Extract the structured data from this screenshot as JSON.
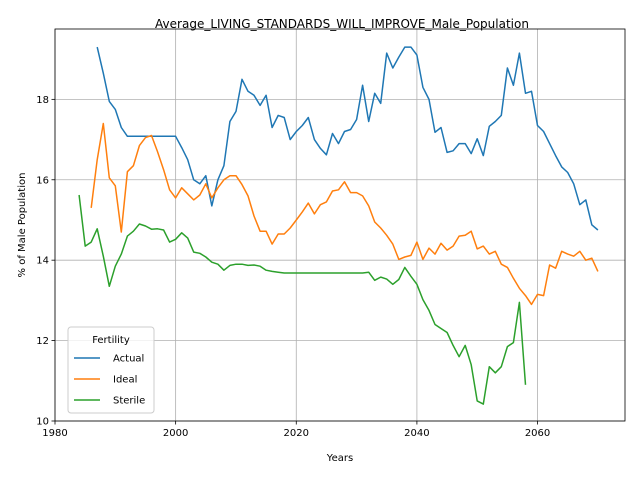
{
  "chart_data": {
    "type": "line",
    "title": "Average_LIVING_STANDARDS_WILL_IMPROVE_Male_Population",
    "xlabel": "Years",
    "ylabel": "% of Male Population",
    "xlim": [
      1980,
      2074.5
    ],
    "ylim": [
      10,
      19.75
    ],
    "xticks": [
      1980,
      2000,
      2020,
      2040,
      2060
    ],
    "yticks": [
      10,
      12,
      14,
      16,
      18
    ],
    "grid": true,
    "legend": {
      "title": "Fertility",
      "placement": "lower-left",
      "entries": [
        "Actual",
        "Ideal",
        "Sterile"
      ]
    },
    "series": [
      {
        "name": "Actual",
        "color": "#1f77b4",
        "x": [
          1987,
          1988,
          1989,
          1990,
          1991,
          1992,
          1993,
          1994,
          1995,
          1996,
          1997,
          1998,
          1999,
          2000,
          2001,
          2002,
          2003,
          2004,
          2005,
          2006,
          2007,
          2008,
          2009,
          2010,
          2011,
          2012,
          2013,
          2014,
          2015,
          2016,
          2017,
          2018,
          2019,
          2020,
          2021,
          2022,
          2023,
          2024,
          2025,
          2026,
          2027,
          2028,
          2029,
          2030,
          2031,
          2032,
          2033,
          2034,
          2035,
          2036,
          2037,
          2038,
          2039,
          2040,
          2041,
          2042,
          2043,
          2044,
          2045,
          2046,
          2047,
          2048,
          2049,
          2050,
          2051,
          2052,
          2053,
          2054,
          2055,
          2056,
          2057,
          2058,
          2059,
          2060,
          2061,
          2062,
          2063,
          2064,
          2065,
          2066,
          2067,
          2068,
          2069,
          2070
        ],
        "y": [
          19.3,
          18.65,
          17.95,
          17.75,
          17.3,
          17.08,
          17.08,
          17.08,
          17.08,
          17.08,
          17.08,
          17.08,
          17.08,
          17.08,
          16.8,
          16.5,
          16.0,
          15.9,
          16.1,
          15.35,
          16.0,
          16.35,
          17.45,
          17.7,
          18.5,
          18.2,
          18.1,
          17.85,
          18.1,
          17.3,
          17.6,
          17.55,
          17.0,
          17.2,
          17.35,
          17.55,
          17.0,
          16.78,
          16.62,
          17.15,
          16.9,
          17.2,
          17.25,
          17.5,
          18.35,
          17.45,
          18.15,
          17.9,
          19.15,
          18.78,
          19.05,
          19.3,
          19.3,
          19.1,
          18.3,
          18.0,
          17.18,
          17.3,
          16.68,
          16.72,
          16.9,
          16.9,
          16.65,
          17.02,
          16.6,
          17.33,
          17.45,
          17.6,
          18.78,
          18.35,
          19.15,
          18.15,
          18.2,
          17.35,
          17.2,
          16.9,
          16.6,
          16.32,
          16.18,
          15.9,
          15.38,
          15.5,
          14.88,
          14.75
        ]
      },
      {
        "name": "Ideal",
        "color": "#ff7f0e",
        "x": [
          1986,
          1987,
          1988,
          1989,
          1990,
          1991,
          1992,
          1993,
          1994,
          1995,
          1996,
          1997,
          1998,
          1999,
          2000,
          2001,
          2002,
          2003,
          2004,
          2005,
          2006,
          2007,
          2008,
          2009,
          2010,
          2011,
          2012,
          2013,
          2014,
          2015,
          2016,
          2017,
          2018,
          2019,
          2020,
          2021,
          2022,
          2023,
          2024,
          2025,
          2026,
          2027,
          2028,
          2029,
          2030,
          2031,
          2032,
          2033,
          2034,
          2035,
          2036,
          2037,
          2038,
          2039,
          2040,
          2041,
          2042,
          2043,
          2044,
          2045,
          2046,
          2047,
          2048,
          2049,
          2050,
          2051,
          2052,
          2053,
          2054,
          2055,
          2056,
          2057,
          2058,
          2059,
          2060,
          2061,
          2062,
          2063,
          2064,
          2065,
          2066,
          2067,
          2068,
          2069,
          2070
        ],
        "y": [
          15.3,
          16.5,
          17.4,
          16.05,
          15.85,
          14.7,
          16.2,
          16.35,
          16.85,
          17.05,
          17.1,
          16.7,
          16.25,
          15.75,
          15.55,
          15.8,
          15.65,
          15.5,
          15.62,
          15.9,
          15.55,
          15.8,
          16.0,
          16.1,
          16.1,
          15.88,
          15.6,
          15.1,
          14.72,
          14.72,
          14.4,
          14.65,
          14.65,
          14.8,
          15.0,
          15.2,
          15.42,
          15.15,
          15.38,
          15.45,
          15.72,
          15.75,
          15.95,
          15.68,
          15.68,
          15.6,
          15.35,
          14.95,
          14.8,
          14.62,
          14.4,
          14.02,
          14.08,
          14.12,
          14.45,
          14.02,
          14.3,
          14.15,
          14.42,
          14.25,
          14.35,
          14.6,
          14.62,
          14.72,
          14.28,
          14.35,
          14.15,
          14.22,
          13.9,
          13.82,
          13.55,
          13.3,
          13.12,
          12.9,
          13.15,
          13.12,
          13.88,
          13.8,
          14.22,
          14.15,
          14.1,
          14.22,
          14.0,
          14.05,
          13.72
        ]
      },
      {
        "name": "Sterile",
        "color": "#2ca02c",
        "x": [
          1984,
          1985,
          1986,
          1987,
          1988,
          1989,
          1990,
          1991,
          1992,
          1993,
          1994,
          1995,
          1996,
          1997,
          1998,
          1999,
          2000,
          2001,
          2002,
          2003,
          2004,
          2005,
          2006,
          2007,
          2008,
          2009,
          2010,
          2011,
          2012,
          2013,
          2014,
          2015,
          2016,
          2017,
          2018,
          2019,
          2020,
          2021,
          2022,
          2023,
          2024,
          2025,
          2026,
          2027,
          2028,
          2029,
          2030,
          2031,
          2032,
          2033,
          2034,
          2035,
          2036,
          2037,
          2038,
          2039,
          2040,
          2041,
          2042,
          2043,
          2044,
          2045,
          2046,
          2047,
          2048,
          2049,
          2050,
          2051,
          2052,
          2053,
          2054,
          2055,
          2056,
          2057,
          2058
        ],
        "y": [
          15.62,
          14.35,
          14.45,
          14.78,
          14.1,
          13.35,
          13.85,
          14.15,
          14.6,
          14.72,
          14.9,
          14.85,
          14.77,
          14.78,
          14.75,
          14.45,
          14.52,
          14.68,
          14.55,
          14.2,
          14.17,
          14.08,
          13.95,
          13.9,
          13.75,
          13.87,
          13.9,
          13.9,
          13.87,
          13.88,
          13.85,
          13.75,
          13.72,
          13.7,
          13.68,
          13.68,
          13.68,
          13.68,
          13.68,
          13.68,
          13.68,
          13.68,
          13.68,
          13.68,
          13.68,
          13.68,
          13.68,
          13.68,
          13.7,
          13.5,
          13.58,
          13.53,
          13.4,
          13.52,
          13.82,
          13.6,
          13.4,
          13.02,
          12.75,
          12.4,
          12.3,
          12.2,
          11.88,
          11.6,
          11.88,
          11.4,
          10.5,
          10.42,
          11.35,
          11.2,
          11.35,
          11.85,
          11.95,
          12.95,
          10.9
        ]
      }
    ]
  }
}
